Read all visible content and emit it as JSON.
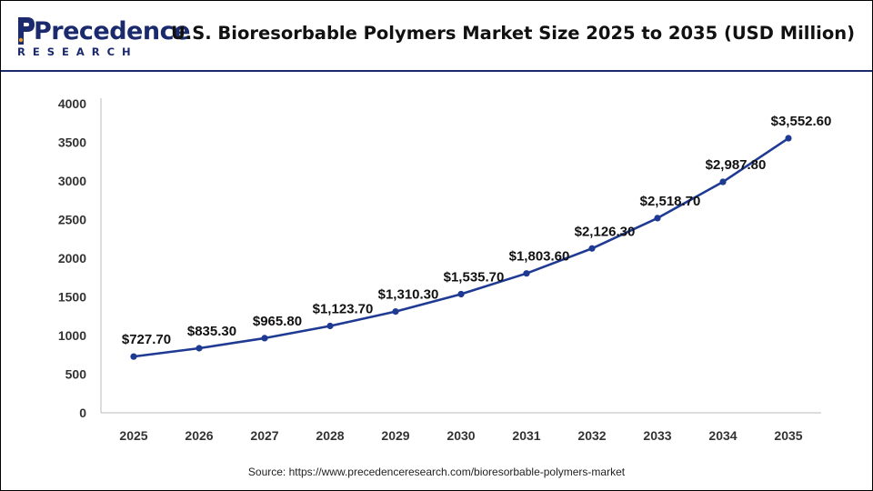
{
  "header": {
    "logo_word": "Precedence",
    "logo_sub": "RESEARCH",
    "title": "U.S. Bioresorbable Polymers Market Size 2025 to 2035 (USD Million)"
  },
  "source": "Source: https://www.precedenceresearch.com/bioresorbable-polymers-market",
  "colors": {
    "line": "#1f3a93",
    "brand": "#1a2a6c",
    "axis": "#333333"
  },
  "chart_data": {
    "type": "line",
    "title": "U.S. Bioresorbable Polymers Market Size 2025 to 2035 (USD Million)",
    "xlabel": "",
    "ylabel": "",
    "categories": [
      "2025",
      "2026",
      "2027",
      "2028",
      "2029",
      "2030",
      "2031",
      "2032",
      "2033",
      "2034",
      "2035"
    ],
    "values": [
      727.7,
      835.3,
      965.8,
      1123.7,
      1310.3,
      1535.7,
      1803.6,
      2126.3,
      2518.7,
      2987.8,
      3552.6
    ],
    "data_labels": [
      "$727.70",
      "$835.30",
      "$965.80",
      "$1,123.70",
      "$1,310.30",
      "$1,535.70",
      "$1,803.60",
      "$2,126.30",
      "$2,518.70",
      "$2,987.80",
      "$3,552.60"
    ],
    "ylim": [
      0,
      4000
    ],
    "yticks": [
      0,
      500,
      1000,
      1500,
      2000,
      2500,
      3000,
      3500,
      4000
    ],
    "grid": false,
    "legend": "none"
  }
}
